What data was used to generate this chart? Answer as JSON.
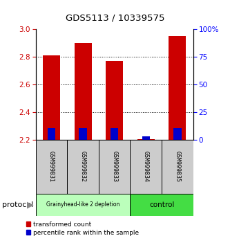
{
  "title": "GDS5113 / 10339575",
  "samples": [
    "GSM999831",
    "GSM999832",
    "GSM999833",
    "GSM999834",
    "GSM999835"
  ],
  "red_values": [
    2.81,
    2.9,
    2.77,
    2.205,
    2.95
  ],
  "blue_values": [
    2.285,
    2.285,
    2.282,
    2.225,
    2.285
  ],
  "red_color": "#cc0000",
  "blue_color": "#0000cc",
  "bar_bottom": 2.2,
  "ylim_left": [
    2.2,
    3.0
  ],
  "ylim_right": [
    0,
    100
  ],
  "yticks_left": [
    2.2,
    2.4,
    2.6,
    2.8,
    3.0
  ],
  "yticks_right": [
    0,
    25,
    50,
    75,
    100
  ],
  "ytick_labels_right": [
    "0",
    "25",
    "50",
    "75",
    "100%"
  ],
  "group1_label": "Grainyhead-like 2 depletion",
  "group2_label": "control",
  "group1_color": "#bbffbb",
  "group2_color": "#44dd44",
  "protocol_label": "protocol",
  "legend_red_label": "transformed count",
  "legend_blue_label": "percentile rank within the sample",
  "bar_width": 0.55,
  "plot_bg_color": "#ffffff",
  "tick_label_area_bg": "#cccccc"
}
